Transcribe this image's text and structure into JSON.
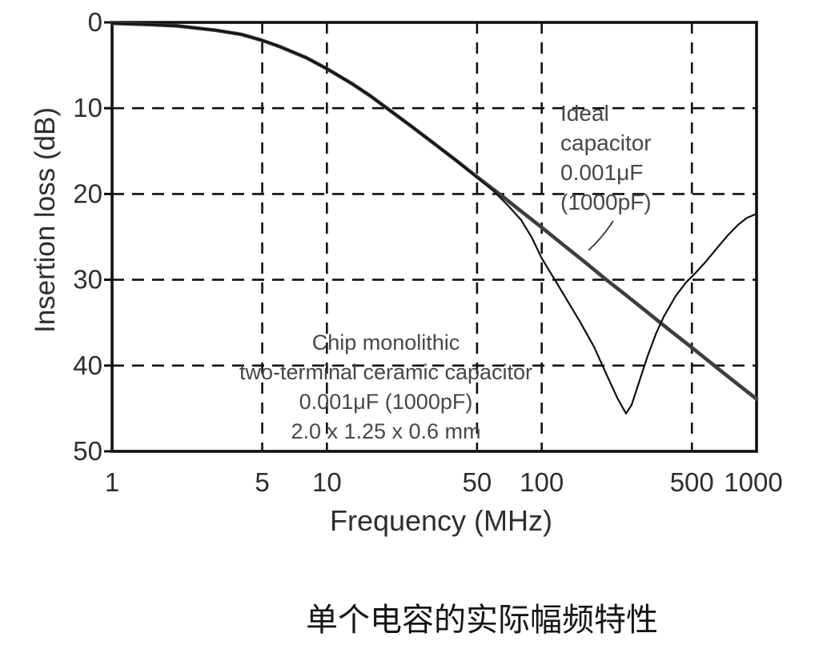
{
  "chart_data": {
    "type": "line",
    "title": "",
    "xlabel": "Frequency (MHz)",
    "ylabel": "Insertion loss (dB)",
    "x_scale": "log",
    "x_range": [
      1,
      1000
    ],
    "y_range": [
      0,
      50
    ],
    "y_axis_inverted": true,
    "grid_style": "dashed",
    "legend_position": "none",
    "x_ticks": [
      1,
      5,
      10,
      50,
      100,
      500,
      1000
    ],
    "y_ticks": [
      0,
      10,
      20,
      30,
      40,
      50
    ],
    "x_gridlines": [
      5,
      10,
      50,
      100,
      500
    ],
    "y_gridlines": [
      10,
      20,
      30,
      40
    ],
    "series": [
      {
        "id": "ideal-capacitor",
        "name": "Ideal capacitor 0.001μF (1000pF)",
        "style": "thick",
        "points": [
          [
            1,
            0.1
          ],
          [
            1.5,
            0.25
          ],
          [
            2,
            0.4
          ],
          [
            3,
            0.9
          ],
          [
            4,
            1.4
          ],
          [
            5,
            2.1
          ],
          [
            6,
            2.8
          ],
          [
            8,
            4.1
          ],
          [
            10,
            5.4
          ],
          [
            13,
            7.1
          ],
          [
            16,
            8.6
          ],
          [
            20,
            10.4
          ],
          [
            25,
            12.2
          ],
          [
            30,
            13.7
          ],
          [
            40,
            16.1
          ],
          [
            50,
            18.0
          ],
          [
            65,
            20.2
          ],
          [
            80,
            22.0
          ],
          [
            100,
            23.9
          ],
          [
            130,
            26.2
          ],
          [
            160,
            28.0
          ],
          [
            200,
            30.0
          ],
          [
            250,
            31.9
          ],
          [
            300,
            33.5
          ],
          [
            400,
            36.0
          ],
          [
            500,
            37.9
          ],
          [
            650,
            40.2
          ],
          [
            800,
            42.0
          ],
          [
            1000,
            43.9
          ]
        ]
      },
      {
        "id": "chip-capacitor",
        "name": "Chip monolithic two-terminal ceramic capacitor 0.001μF (1000pF) 2.0 x 1.25 x 0.6 mm",
        "style": "thin",
        "points": [
          [
            1,
            0.1
          ],
          [
            1.5,
            0.25
          ],
          [
            2,
            0.4
          ],
          [
            3,
            0.9
          ],
          [
            4,
            1.4
          ],
          [
            5,
            2.1
          ],
          [
            6,
            2.8
          ],
          [
            8,
            4.1
          ],
          [
            10,
            5.4
          ],
          [
            13,
            7.1
          ],
          [
            16,
            8.6
          ],
          [
            20,
            10.4
          ],
          [
            25,
            12.2
          ],
          [
            30,
            13.7
          ],
          [
            40,
            16.1
          ],
          [
            50,
            18.1
          ],
          [
            60,
            19.7
          ],
          [
            70,
            21.4
          ],
          [
            80,
            23.0
          ],
          [
            90,
            25.1
          ],
          [
            100,
            27.5
          ],
          [
            115,
            30.0
          ],
          [
            130,
            32.2
          ],
          [
            150,
            34.8
          ],
          [
            175,
            37.8
          ],
          [
            200,
            41.0
          ],
          [
            225,
            43.8
          ],
          [
            247,
            45.6
          ],
          [
            262,
            44.6
          ],
          [
            285,
            41.8
          ],
          [
            310,
            39.0
          ],
          [
            340,
            36.3
          ],
          [
            370,
            34.3
          ],
          [
            420,
            31.9
          ],
          [
            470,
            30.3
          ],
          [
            520,
            29.2
          ],
          [
            580,
            27.9
          ],
          [
            650,
            26.4
          ],
          [
            730,
            24.9
          ],
          [
            820,
            23.6
          ],
          [
            900,
            22.8
          ],
          [
            1000,
            22.3
          ]
        ]
      }
    ]
  },
  "annotations": {
    "ideal": {
      "lines": [
        "Ideal",
        "capacitor",
        "0.001μF",
        "(1000pF)"
      ]
    },
    "chip": {
      "lines": [
        "Chip monolithic",
        "two-terminal ceramic capacitor",
        "0.001μF (1000pF)",
        "2.0 x 1.25 x 0.6 mm"
      ]
    }
  },
  "caption": "单个电容的实际幅频特性",
  "colors": {
    "background": "#ffffff",
    "grid": "#111111",
    "frame": "#0f0f0f",
    "ideal_line": "#3e3e3e",
    "chip_line": "#101010",
    "text": "#2e2e2e",
    "annotation_text": "#474747",
    "caption_text": "#151515"
  }
}
